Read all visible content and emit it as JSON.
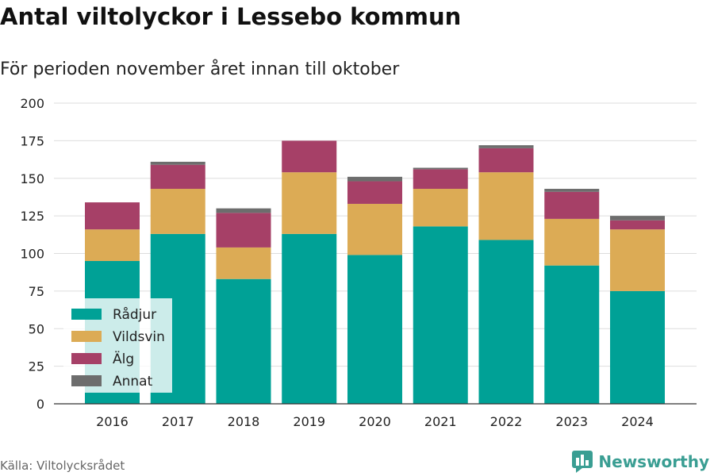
{
  "title": "Antal viltolyckor i Lessebo kommun",
  "subtitle": "För perioden november året innan till oktober",
  "source": "Källa: Viltolycksrådet",
  "brand": "Newsworthy",
  "chart_data": {
    "type": "bar",
    "stacked": true,
    "categories": [
      "2016",
      "2017",
      "2018",
      "2019",
      "2020",
      "2021",
      "2022",
      "2023",
      "2024"
    ],
    "series": [
      {
        "name": "Rådjur",
        "color": "#00a196",
        "values": [
          95,
          113,
          83,
          113,
          99,
          118,
          109,
          92,
          75
        ]
      },
      {
        "name": "Vildsvin",
        "color": "#dcab55",
        "values": [
          21,
          30,
          21,
          41,
          34,
          25,
          45,
          31,
          41
        ]
      },
      {
        "name": "Älg",
        "color": "#a64067",
        "values": [
          18,
          16,
          23,
          21,
          15,
          13,
          16,
          18,
          6
        ]
      },
      {
        "name": "Annat",
        "color": "#6d6d6d",
        "values": [
          0,
          2,
          3,
          0,
          3,
          1,
          2,
          2,
          3
        ]
      }
    ],
    "yticks": [
      0,
      25,
      50,
      75,
      100,
      125,
      150,
      175,
      200
    ],
    "ylim": [
      0,
      200
    ],
    "grid": true,
    "legend_position": "bottom-left"
  }
}
